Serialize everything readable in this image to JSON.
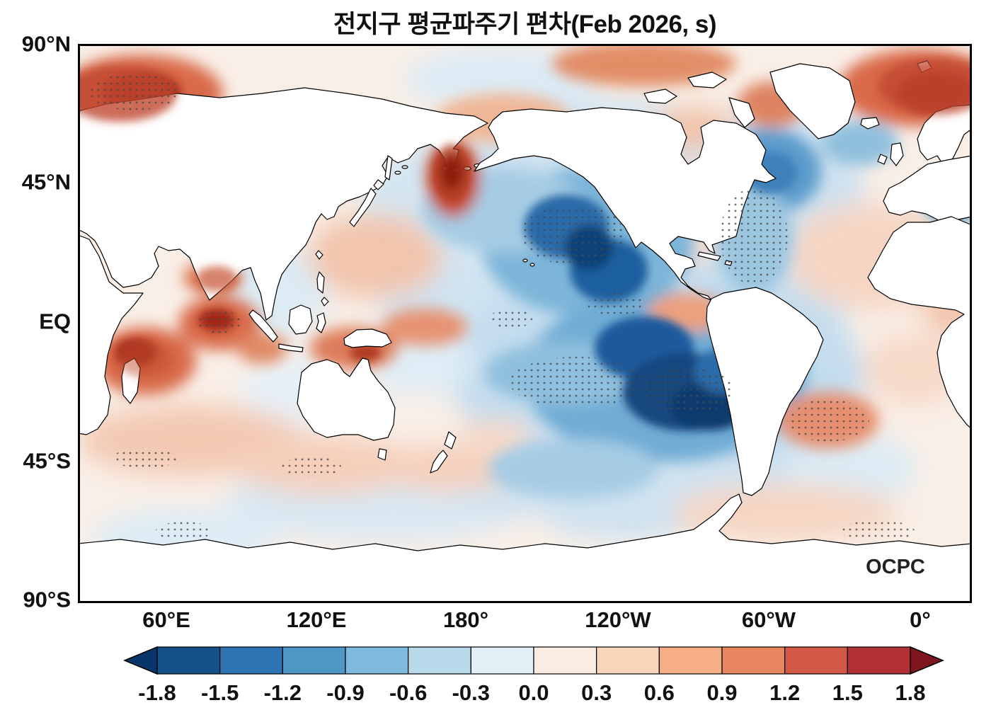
{
  "title": "전지구 평균파주기 편차(Feb 2026, s)",
  "watermark": "OCPC",
  "axes": {
    "lat": [
      "90°N",
      "45°N",
      "EQ",
      "45°S",
      "90°S"
    ],
    "lon": [
      "60°E",
      "120°E",
      "180°",
      "120°W",
      "60°W",
      "0°"
    ]
  },
  "colorbar": {
    "colors": [
      "#08366b",
      "#155189",
      "#2e73b2",
      "#4d96c6",
      "#7ebade",
      "#b7d9ea",
      "#e3eff6",
      "#fbece1",
      "#f9d5bc",
      "#f5ae85",
      "#e8875f",
      "#d25847",
      "#b03036",
      "#7f161f"
    ],
    "ticks": [
      "-1.8",
      "-1.5",
      "-1.2",
      "-0.9",
      "-0.6",
      "-0.3",
      "0.0",
      "0.3",
      "0.6",
      "0.9",
      "1.2",
      "1.5",
      "1.8"
    ]
  },
  "chart_data": {
    "type": "heatmap",
    "title": "전지구 평균파주기 편차(Feb 2026, s)",
    "variable": "global mean wave period anomaly",
    "period": "Feb 2026",
    "units": "s",
    "projection": "equirectangular world map, Pacific-centered (left edge ~25°E, right edge ~25°E)",
    "lat_ticks": [
      "90°N",
      "45°N",
      "EQ",
      "45°S",
      "90°S"
    ],
    "lon_ticks": [
      "60°E",
      "120°E",
      "180°",
      "120°W",
      "60°W",
      "0°"
    ],
    "colorbar_levels": [
      -1.8,
      -1.5,
      -1.2,
      -0.9,
      -0.6,
      -0.3,
      0.0,
      0.3,
      0.6,
      0.9,
      1.2,
      1.5,
      1.8
    ],
    "colorbar_colors": [
      "#08366b",
      "#155189",
      "#2e73b2",
      "#4d96c6",
      "#7ebade",
      "#b7d9ea",
      "#e3eff6",
      "#fbece1",
      "#f9d5bc",
      "#f5ae85",
      "#e8875f",
      "#d25847",
      "#b03036",
      "#7f161f"
    ],
    "colorbar_style": "horizontal discrete colorbar with triangular out-of-range arrows at both ends",
    "annotation": "OCPC watermark at bottom right of map; stippled (dotted) regions mark significant anomalies",
    "features": [
      {
        "region": "central/eastern North Pacific (~30-45N, 170-130W)",
        "sign": "negative",
        "value": "-1.2 to -1.8 s, stippled core"
      },
      {
        "region": "southeast Pacific (~5-40S, 140-80W)",
        "sign": "negative",
        "value": "-1.5 to -1.8 s, large stippled core"
      },
      {
        "region": "equatorial central Pacific",
        "sign": "negative",
        "value": "-0.6 to -1.2 s, stippled"
      },
      {
        "region": "North Atlantic (~35-55N)",
        "sign": "negative",
        "value": "-0.6 to -1.2 s, stippled"
      },
      {
        "region": "Norwegian Sea and eastern Mediterranean",
        "sign": "negative",
        "value": "-0.6 to -0.9 s"
      },
      {
        "region": "Kamchatka / Sea of Okhotsk",
        "sign": "positive",
        "value": "+1.2 to +1.8 s"
      },
      {
        "region": "Arctic near both map corners (~80N)",
        "sign": "positive",
        "value": "+1.2 to +1.8 s, stippled"
      },
      {
        "region": "Arabian Sea and northwest of India",
        "sign": "positive",
        "value": "+0.9 to +1.5 s, stippled"
      },
      {
        "region": "Madagascar / Mozambique Channel",
        "sign": "positive",
        "value": "+0.9 to +1.5 s"
      },
      {
        "region": "Indonesian seas and equatorial west Pacific",
        "sign": "positive",
        "value": "+0.6 to +1.2 s"
      },
      {
        "region": "South Atlantic (~25-40S)",
        "sign": "positive",
        "value": "+0.3 to +0.9 s, stippled"
      },
      {
        "region": "southern Indian Ocean band (~40-55S)",
        "sign": "positive",
        "value": "+0.3 to +0.6 s"
      },
      {
        "region": "Southern Ocean near Antarctica",
        "sign": "mixed",
        "value": "weak ±0.3 s patches"
      }
    ]
  }
}
